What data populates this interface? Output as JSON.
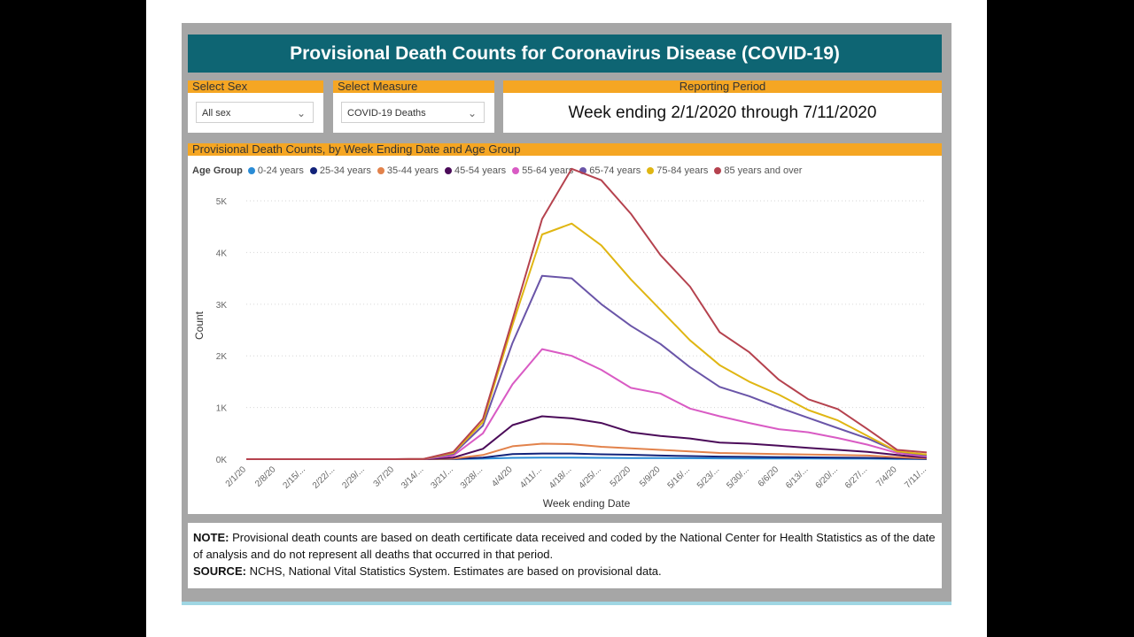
{
  "dashboard": {
    "title": "Provisional Death Counts for Coronavirus Disease (COVID-19)",
    "sex_filter": {
      "label": "Select Sex",
      "value": "All sex"
    },
    "measure_filter": {
      "label": "Select Measure",
      "value": "COVID-19 Deaths"
    },
    "period": {
      "label": "Reporting Period",
      "value": "Week ending 2/1/2020 through 7/11/2020"
    },
    "note_label": "NOTE:",
    "note_text": " Provisional death counts are based on death certificate data received and coded by the National Center for Health Statistics as of the date of analysis and do not represent all deaths that occurred in that period.",
    "source_label": "SOURCE:",
    "source_text": " NCHS, National Vital Statistics System. Estimates are based on provisional data."
  },
  "chart_data": {
    "type": "line",
    "title": "Provisional Death Counts, by Week Ending Date and Age Group",
    "legend_title": "Age Group",
    "xlabel": "Week ending Date",
    "ylabel": "Count",
    "ylim": [
      0,
      5600
    ],
    "yticks": [
      0,
      1000,
      2000,
      3000,
      4000,
      5000
    ],
    "ytick_labels": [
      "0K",
      "1K",
      "2K",
      "3K",
      "4K",
      "5K"
    ],
    "categories": [
      "2/1/20",
      "2/8/20",
      "2/15/...",
      "2/22/...",
      "2/29/...",
      "3/7/20",
      "3/14/...",
      "3/21/...",
      "3/28/...",
      "4/4/20",
      "4/11/...",
      "4/18/...",
      "4/25/...",
      "5/2/20",
      "5/9/20",
      "5/16/...",
      "5/23/...",
      "5/30/...",
      "6/6/20",
      "6/13/...",
      "6/20/...",
      "6/27/...",
      "7/4/20",
      "7/11/..."
    ],
    "series": [
      {
        "name": "0-24 years",
        "color": "#2a8cd6",
        "values": [
          0,
          0,
          0,
          0,
          0,
          0,
          0,
          2,
          10,
          25,
          30,
          30,
          25,
          22,
          20,
          18,
          15,
          14,
          12,
          12,
          10,
          10,
          5,
          2
        ]
      },
      {
        "name": "25-34 years",
        "color": "#12237a",
        "values": [
          0,
          0,
          0,
          0,
          0,
          0,
          0,
          5,
          30,
          100,
          110,
          110,
          95,
          85,
          70,
          60,
          50,
          45,
          40,
          35,
          30,
          25,
          15,
          5
        ]
      },
      {
        "name": "35-44 years",
        "color": "#e2824b",
        "values": [
          0,
          0,
          0,
          0,
          0,
          0,
          0,
          10,
          80,
          250,
          300,
          290,
          240,
          210,
          180,
          150,
          120,
          110,
          100,
          90,
          80,
          70,
          40,
          15
        ]
      },
      {
        "name": "45-54 years",
        "color": "#4b0b59",
        "values": [
          0,
          0,
          0,
          0,
          0,
          0,
          2,
          30,
          200,
          660,
          830,
          790,
          700,
          520,
          450,
          400,
          320,
          300,
          260,
          220,
          180,
          140,
          80,
          30
        ]
      },
      {
        "name": "55-64 years",
        "color": "#d95bc4",
        "values": [
          0,
          0,
          0,
          0,
          0,
          0,
          5,
          70,
          500,
          1450,
          2130,
          2000,
          1730,
          1380,
          1270,
          980,
          830,
          700,
          580,
          520,
          410,
          280,
          120,
          50
        ]
      },
      {
        "name": "65-74 years",
        "color": "#6a55a8",
        "values": [
          0,
          0,
          0,
          0,
          0,
          0,
          5,
          100,
          650,
          2250,
          3550,
          3500,
          3000,
          2580,
          2230,
          1780,
          1400,
          1220,
          1000,
          800,
          600,
          400,
          150,
          70
        ]
      },
      {
        "name": "75-84 years",
        "color": "#e0b613",
        "values": [
          0,
          0,
          0,
          0,
          0,
          0,
          5,
          120,
          720,
          2600,
          4350,
          4560,
          4140,
          3480,
          2890,
          2300,
          1820,
          1500,
          1250,
          950,
          750,
          450,
          150,
          90
        ]
      },
      {
        "name": "85 years and over",
        "color": "#b5424e",
        "values": [
          0,
          0,
          0,
          0,
          0,
          0,
          5,
          140,
          780,
          2700,
          4650,
          5620,
          5400,
          4750,
          3950,
          3340,
          2460,
          2070,
          1540,
          1160,
          970,
          580,
          180,
          130
        ]
      }
    ]
  }
}
